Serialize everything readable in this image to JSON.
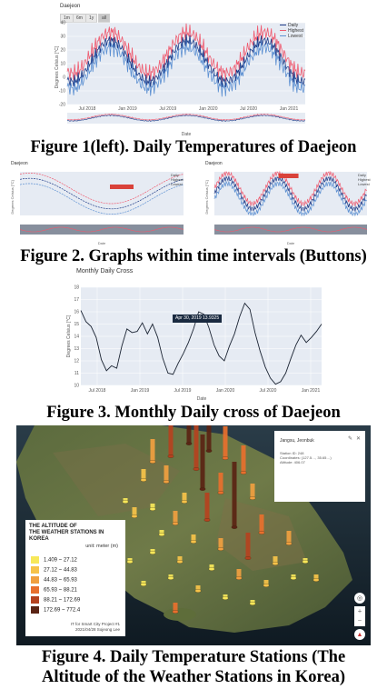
{
  "figures": [
    {
      "id": "fig1",
      "title": "Daejeon",
      "buttons": [
        "1m",
        "6m",
        "1y",
        "all"
      ],
      "active_button": "all",
      "ylabel": "Degrees Celsius [°C]",
      "xlabel": "Date",
      "legend": [
        "Daily",
        "Highest",
        "Lowest"
      ],
      "caption": "Figure 1(left). Daily Temperatures of Daejeon"
    },
    {
      "id": "fig2",
      "left_title": "Daejeon",
      "right_title": "Daejeon",
      "legend": [
        "Daily",
        "Highest",
        "Lowest"
      ],
      "ylabel": "Degrees Celsius [°C]",
      "xlabel": "Date",
      "caption": "Figure 2. Graphs within time intervals (Buttons)"
    },
    {
      "id": "fig3",
      "title": "Monthly Daily Cross",
      "ylabel": "Degrees Celsius [°C]",
      "xlabel": "Date",
      "tooltip": "Apr 30, 2019  13.9325",
      "caption": "Figure 3. Monthly Daily cross of Daejeon"
    },
    {
      "id": "fig4",
      "legend_title_line1": "THE ALTITUDE OF",
      "legend_title_line2": "THE WEATHER STATIONS IN KOREA",
      "legend_unit": "unit: meter (m)",
      "legend_foot_line1": "IT for Smart City Project #1",
      "legend_foot_line2": "2021/04/28 Sojeong Lee",
      "info_title": "Jangsu, Jeonbuk",
      "info_line1": "Station ID: 248",
      "info_line2": "Coordinates: (127.5…, 35.65…)",
      "info_line3": "Altitude: 406.07",
      "caption_line1": "Figure 4. Daily Temperature Stations (The",
      "caption_line2": "Altitude of the Weather Stations in Korea)"
    }
  ],
  "colors": {
    "daily": "#1f3c88",
    "highest": "#ef5a6f",
    "lowest": "#5b8fd1",
    "plot_bg": "#e6ebf3",
    "legend_bins": [
      "#f7e85a",
      "#f6c34a",
      "#f0a040",
      "#e8702e",
      "#b5421f",
      "#5a2414"
    ]
  },
  "chart_data": [
    {
      "type": "line",
      "title": "Daejeon",
      "ylabel": "Degrees Celsius [°C]",
      "xlabel": "Date",
      "x_ticks": [
        "Jul 2018",
        "Jan 2019",
        "Jul 2019",
        "Jan 2020",
        "Jul 2020",
        "Jan 2021"
      ],
      "y_ticks": [
        40,
        30,
        20,
        10,
        0,
        -10,
        -20
      ],
      "ylim": [
        -20,
        40
      ],
      "series": [
        {
          "name": "Daily"
        },
        {
          "name": "Highest"
        },
        {
          "name": "Lowest"
        }
      ],
      "legend_position": "top-right"
    },
    {
      "type": "line",
      "title": "Monthly Daily Cross",
      "ylabel": "Degrees Celsius [°C]",
      "xlabel": "Date",
      "x_ticks": [
        "Jul 2018",
        "Jan 2019",
        "Jul 2019",
        "Jan 2020",
        "Jul 2020",
        "Jan 2021"
      ],
      "y_ticks": [
        18,
        17,
        16,
        15,
        14,
        13,
        12,
        11,
        10
      ],
      "ylim": [
        10,
        18
      ],
      "values": [
        16.1,
        15.2,
        14.8,
        13.9,
        12.1,
        11.2,
        11.6,
        11.4,
        13.2,
        14.6,
        14.3,
        14.4,
        15.1,
        14.2,
        15.0,
        13.9,
        12.2,
        11.0,
        10.9,
        11.8,
        12.6,
        13.5,
        14.6,
        16.0,
        15.8,
        14.7,
        13.3,
        12.4,
        12.0,
        13.2,
        14.2,
        15.6,
        16.7,
        16.2,
        14.3,
        12.8,
        11.5,
        10.6,
        10.1,
        10.3,
        11.0,
        12.2,
        13.3,
        14.1,
        13.5,
        13.9,
        14.4,
        15.0
      ],
      "tooltip_value": "Apr 30, 2019  13.9325"
    }
  ]
}
